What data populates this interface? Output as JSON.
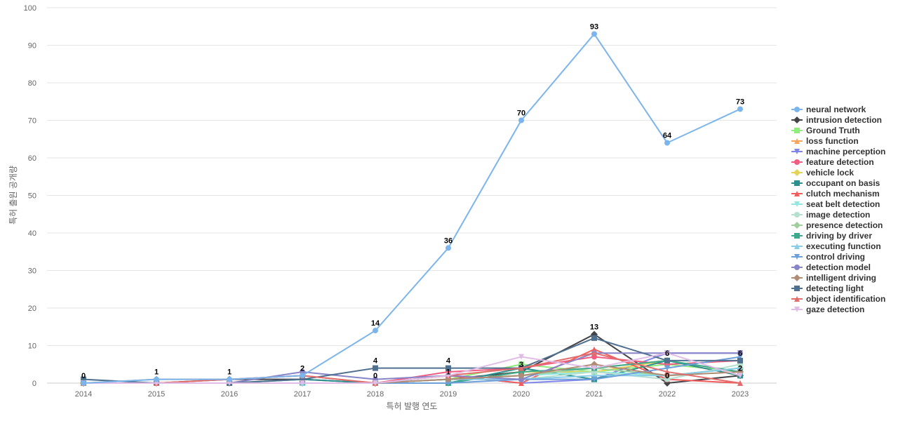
{
  "chart_data": {
    "type": "line",
    "xlabel": "특허 발행 연도",
    "ylabel": "특허 출원 공개량",
    "ylim": [
      0,
      100
    ],
    "yticks": [
      0,
      10,
      20,
      30,
      40,
      50,
      60,
      70,
      80,
      90,
      100
    ],
    "x": [
      "2014",
      "2015",
      "2016",
      "2017",
      "2018",
      "2019",
      "2020",
      "2021",
      "2022",
      "2023"
    ],
    "legend_position": "right",
    "grid": true,
    "series": [
      {
        "name": "neural network",
        "color": "#7cb5ec",
        "marker": "circle",
        "values": [
          0,
          1,
          1,
          2,
          14,
          36,
          70,
          93,
          64,
          73
        ],
        "labels": true
      },
      {
        "name": "intrusion detection",
        "color": "#434348",
        "marker": "diamond",
        "values": [
          0,
          0,
          1,
          1,
          0,
          1,
          3,
          13,
          0,
          2
        ],
        "labels": true
      },
      {
        "name": "Ground Truth",
        "color": "#90ed7d",
        "marker": "square",
        "values": [
          0,
          0,
          0,
          0,
          0,
          1,
          5,
          3,
          5,
          3
        ]
      },
      {
        "name": "loss function",
        "color": "#f7a35c",
        "marker": "triangle",
        "values": [
          0,
          0,
          0,
          0,
          0,
          1,
          2,
          4,
          6,
          2
        ]
      },
      {
        "name": "machine perception",
        "color": "#8085e9",
        "marker": "triangle-down",
        "values": [
          0,
          0,
          0,
          0,
          0,
          2,
          0,
          1,
          8,
          8
        ]
      },
      {
        "name": "feature detection",
        "color": "#f15c80",
        "marker": "circle",
        "values": [
          0,
          0,
          0,
          0,
          0,
          3,
          4,
          7,
          5,
          6
        ]
      },
      {
        "name": "vehicle lock",
        "color": "#e4d354",
        "marker": "diamond",
        "values": [
          0,
          0,
          0,
          0,
          0,
          0,
          3,
          3,
          6,
          3
        ]
      },
      {
        "name": "occupant on basis",
        "color": "#2b908f",
        "marker": "square",
        "values": [
          0,
          0,
          0,
          1,
          0,
          0,
          4,
          1,
          6,
          2
        ]
      },
      {
        "name": "clutch mechanism",
        "color": "#f45b5b",
        "marker": "triangle",
        "values": [
          0,
          0,
          0,
          0,
          0,
          2,
          0,
          9,
          1,
          0
        ]
      },
      {
        "name": "seat belt detection",
        "color": "#91e8e1",
        "marker": "triangle-down",
        "values": [
          0,
          0,
          0,
          0,
          0,
          1,
          2,
          3,
          2,
          4
        ]
      },
      {
        "name": "image detection",
        "color": "#b5dfcf",
        "marker": "circle",
        "values": [
          0,
          0,
          0,
          0,
          0,
          1,
          1,
          3,
          1,
          5
        ]
      },
      {
        "name": "presence detection",
        "color": "#9fcf9f",
        "marker": "diamond",
        "values": [
          0,
          0,
          0,
          0,
          0,
          1,
          2,
          4,
          2,
          4
        ]
      },
      {
        "name": "driving by driver",
        "color": "#3ba98b",
        "marker": "square",
        "values": [
          0,
          0,
          0,
          0,
          0,
          0,
          3,
          4,
          6,
          3
        ]
      },
      {
        "name": "executing function",
        "color": "#88cce8",
        "marker": "triangle",
        "values": [
          0,
          0,
          0,
          0,
          0,
          1,
          1,
          2,
          2,
          4
        ]
      },
      {
        "name": "control driving",
        "color": "#6d9fdb",
        "marker": "triangle-down",
        "values": [
          0,
          0,
          0,
          0,
          0,
          0,
          1,
          1,
          4,
          7
        ]
      },
      {
        "name": "detection model",
        "color": "#8884c8",
        "marker": "circle",
        "values": [
          0,
          0,
          0,
          3,
          1,
          2,
          1,
          8,
          8,
          8
        ]
      },
      {
        "name": "intelligent driving",
        "color": "#b08c74",
        "marker": "diamond",
        "values": [
          0,
          1,
          1,
          2,
          0,
          1,
          2,
          5,
          2,
          3
        ]
      },
      {
        "name": "detecting light",
        "color": "#4f708f",
        "marker": "square",
        "values": [
          1,
          0,
          0,
          1,
          4,
          4,
          4,
          12,
          6,
          6
        ],
        "labels": true
      },
      {
        "name": "object identification",
        "color": "#e36c6c",
        "marker": "triangle",
        "values": [
          0,
          0,
          1,
          2,
          0,
          2,
          4,
          8,
          3,
          0
        ]
      },
      {
        "name": "gaze detection",
        "color": "#e0bde6",
        "marker": "triangle-down",
        "values": [
          0,
          0,
          0,
          0,
          0,
          2,
          7,
          4,
          8,
          2
        ]
      }
    ]
  }
}
